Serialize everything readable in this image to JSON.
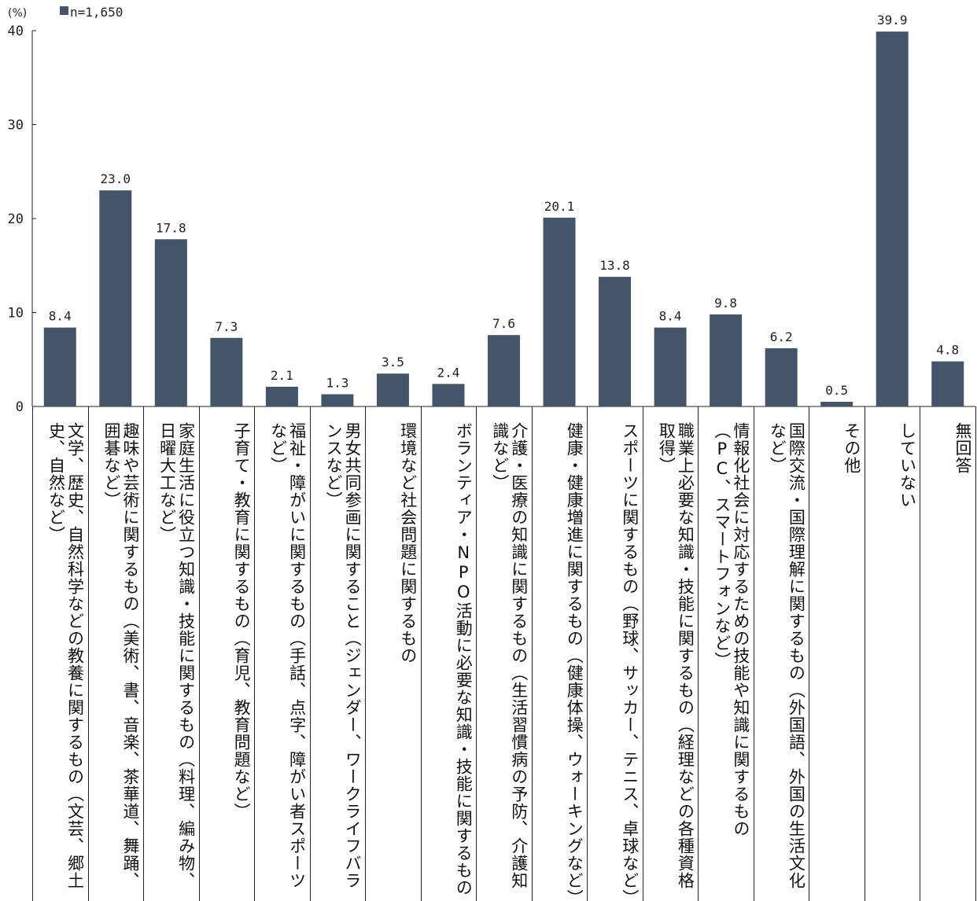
{
  "chart_data": {
    "type": "bar",
    "unit_label": "(%)",
    "legend": "n=1,650",
    "ylim": [
      0,
      40
    ],
    "yticks": [
      0,
      10,
      20,
      30,
      40
    ],
    "bar_color": "#44546a",
    "categories": [
      "文学、歴史、自然科学などの教養に関するもの（文芸、郷土史、自然など）",
      "趣味や芸術に関するもの（美術、書、音楽、茶華道、舞踊、囲碁など）",
      "家庭生活に役立つ知識・技能に関するもの（料理、編み物、日曜大工など）",
      "子育て・教育に関するもの（育児、教育問題など）",
      "福祉・障がいに関するもの（手話、点字、障がい者スポーツなど）",
      "男女共同参画に関すること（ジェンダー、ワークライフバランスなど）",
      "環境など社会問題に関するもの",
      "ボランティア・NPO活動に必要な知識・技能に関するもの",
      "介護・医療の知識に関するもの（生活習慣病の予防、介護知識など）",
      "健康・健康増進に関するもの（健康体操、ウォーキングなど）",
      "スポーツに関するもの（野球、サッカー、テニス、卓球など）",
      "職業上必要な知識・技能に関するもの（経理などの各種資格取得）",
      "情報化社会に対応するための技能や知識に関するもの（PC、スマートフォンなど）",
      "国際交流・国際理解に関するもの（外国語、外国の生活文化など）",
      "その他",
      "していない",
      "無回答"
    ],
    "values": [
      8.4,
      23.0,
      17.8,
      7.3,
      2.1,
      1.3,
      3.5,
      2.4,
      7.6,
      20.1,
      13.8,
      8.4,
      9.8,
      6.2,
      0.5,
      39.9,
      4.8
    ],
    "value_labels": [
      "8.4",
      "23.0",
      "17.8",
      "7.3",
      "2.1",
      "1.3",
      "3.5",
      "2.4",
      "7.6",
      "20.1",
      "13.8",
      "8.4",
      "9.8",
      "6.2",
      "0.5",
      "39.9",
      "4.8"
    ]
  }
}
